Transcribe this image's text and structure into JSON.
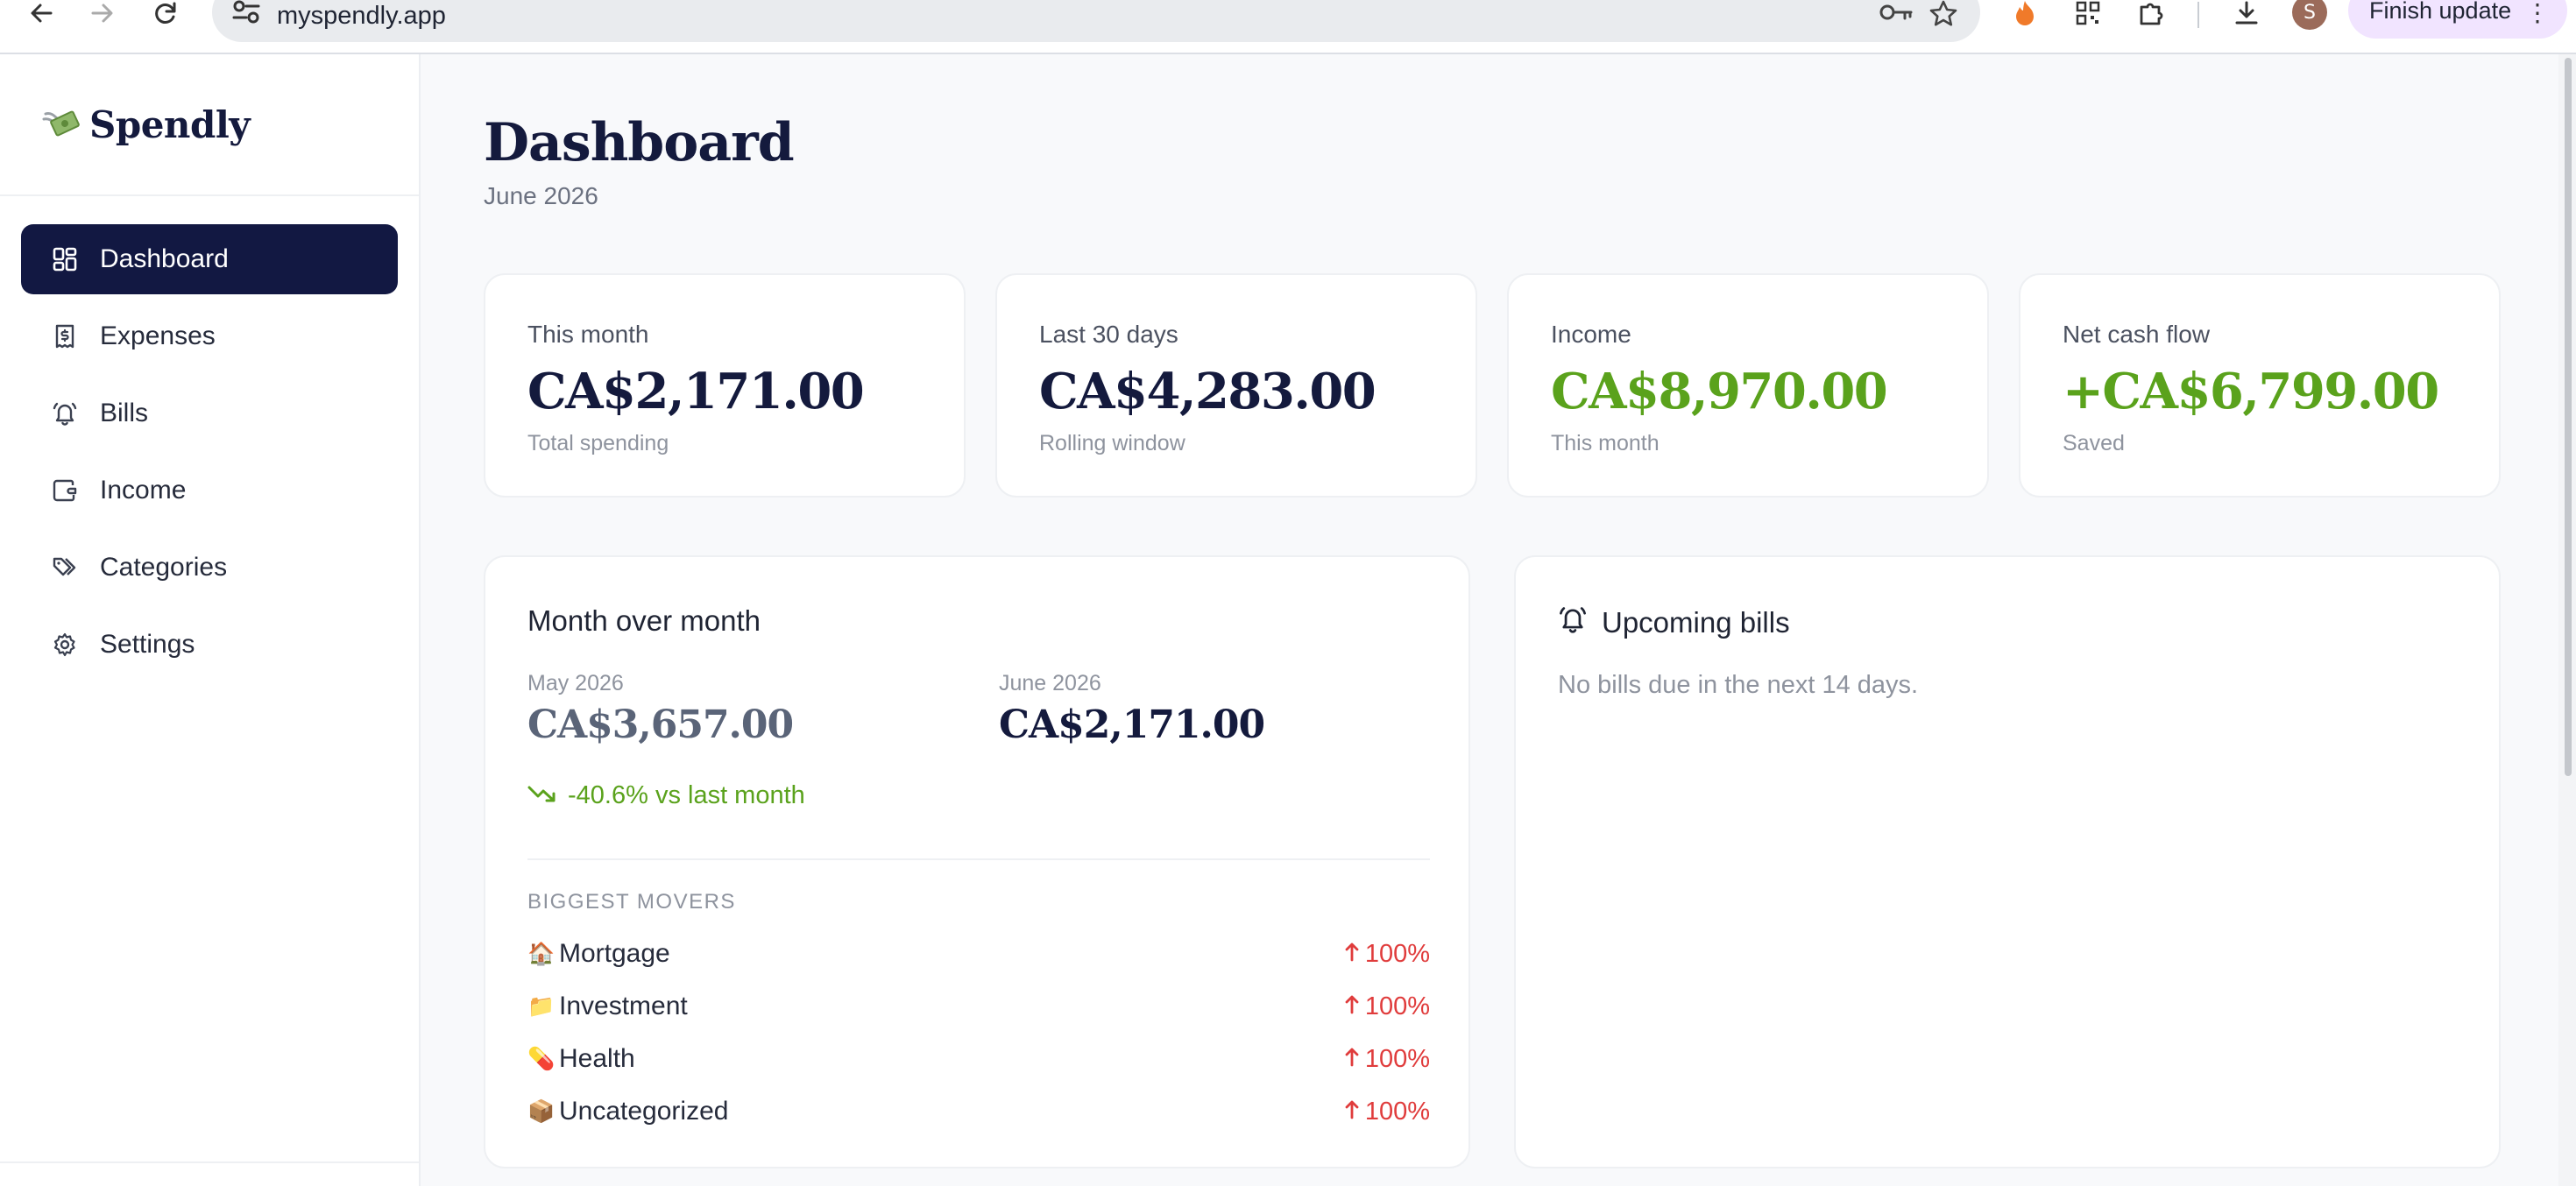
{
  "browser": {
    "url": "myspendly.app",
    "profile_initial": "S",
    "update_label": "Finish update"
  },
  "sidebar": {
    "logo_text": "Spendly",
    "items": [
      {
        "label": "Dashboard",
        "icon": "dashboard-icon",
        "active": true
      },
      {
        "label": "Expenses",
        "icon": "receipt-icon",
        "active": false
      },
      {
        "label": "Bills",
        "icon": "bell-icon",
        "active": false
      },
      {
        "label": "Income",
        "icon": "wallet-icon",
        "active": false
      },
      {
        "label": "Categories",
        "icon": "tags-icon",
        "active": false
      },
      {
        "label": "Settings",
        "icon": "gear-icon",
        "active": false
      }
    ]
  },
  "header": {
    "title": "Dashboard",
    "subtitle": "June 2026"
  },
  "stats": [
    {
      "label": "This month",
      "value": "CA$2,171.00",
      "sub": "Total spending",
      "color": "#141a3d"
    },
    {
      "label": "Last 30 days",
      "value": "CA$4,283.00",
      "sub": "Rolling window",
      "color": "#141a3d"
    },
    {
      "label": "Income",
      "value": "CA$8,970.00",
      "sub": "This month",
      "color": "#5aa21c"
    },
    {
      "label": "Net cash flow",
      "value": "+CA$6,799.00",
      "sub": "Saved",
      "color": "#5aa21c"
    }
  ],
  "month_over_month": {
    "title": "Month over month",
    "previous": {
      "label": "May 2026",
      "value": "CA$3,657.00",
      "color": "#5a6478"
    },
    "current": {
      "label": "June 2026",
      "value": "CA$2,171.00",
      "color": "#141a3d"
    },
    "delta": "-40.6% vs last month",
    "movers_title": "BIGGEST MOVERS",
    "movers": [
      {
        "emoji": "🏠",
        "name": "Mortgage",
        "change": "100%"
      },
      {
        "emoji": "📁",
        "name": "Investment",
        "change": "100%"
      },
      {
        "emoji": "💊",
        "name": "Health",
        "change": "100%"
      },
      {
        "emoji": "📦",
        "name": "Uncategorized",
        "change": "100%"
      }
    ]
  },
  "upcoming_bills": {
    "title": "Upcoming bills",
    "empty_text": "No bills due in the next 14 days."
  }
}
